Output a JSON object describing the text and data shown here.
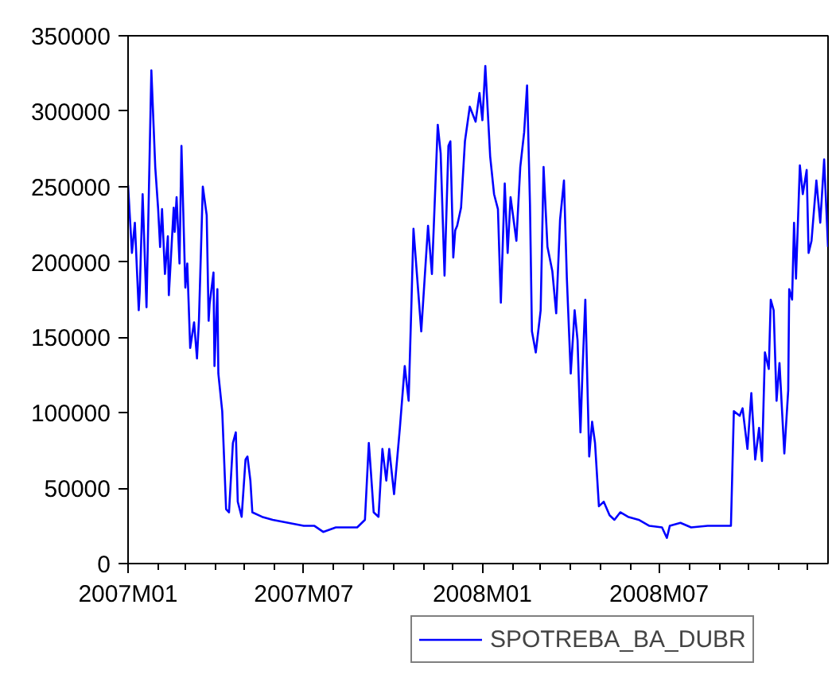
{
  "chart_data": {
    "type": "line",
    "legend": "bottom",
    "grid": false,
    "xlim": [
      "2007-01-01",
      "2008-12-22"
    ],
    "xticks": [
      {
        "value": "2007-01-01",
        "label": "2007M01"
      },
      {
        "value": "2007-02-01",
        "label": null
      },
      {
        "value": "2007-03-01",
        "label": null
      },
      {
        "value": "2007-04-01",
        "label": null
      },
      {
        "value": "2007-05-01",
        "label": null
      },
      {
        "value": "2007-06-01",
        "label": null
      },
      {
        "value": "2007-07-01",
        "label": "2007M07"
      },
      {
        "value": "2007-08-01",
        "label": null
      },
      {
        "value": "2007-09-01",
        "label": null
      },
      {
        "value": "2007-10-01",
        "label": null
      },
      {
        "value": "2007-11-01",
        "label": null
      },
      {
        "value": "2007-12-01",
        "label": null
      },
      {
        "value": "2008-01-01",
        "label": "2008M01"
      },
      {
        "value": "2008-02-01",
        "label": null
      },
      {
        "value": "2008-03-01",
        "label": null
      },
      {
        "value": "2008-04-01",
        "label": null
      },
      {
        "value": "2008-05-01",
        "label": null
      },
      {
        "value": "2008-06-01",
        "label": null
      },
      {
        "value": "2008-07-01",
        "label": "2008M07"
      },
      {
        "value": "2008-08-01",
        "label": null
      },
      {
        "value": "2008-09-01",
        "label": null
      },
      {
        "value": "2008-10-01",
        "label": null
      },
      {
        "value": "2008-11-01",
        "label": null
      },
      {
        "value": "2008-12-01",
        "label": null
      }
    ],
    "ylim": [
      0,
      350000
    ],
    "yticks": [
      0,
      50000,
      100000,
      150000,
      200000,
      250000,
      300000,
      350000
    ],
    "x": [
      "2007-01-01",
      "2007-01-05",
      "2007-01-08",
      "2007-01-12",
      "2007-01-13",
      "2007-01-16",
      "2007-01-20",
      "2007-01-25",
      "2007-01-29",
      "2007-02-01",
      "2007-02-03",
      "2007-02-05",
      "2007-02-08",
      "2007-02-11",
      "2007-02-12",
      "2007-02-17",
      "2007-02-18",
      "2007-02-20",
      "2007-02-23",
      "2007-02-25",
      "2007-03-01",
      "2007-03-03",
      "2007-03-06",
      "2007-03-10",
      "2007-03-13",
      "2007-03-15",
      "2007-03-19",
      "2007-03-23",
      "2007-03-25",
      "2007-03-26",
      "2007-03-30",
      "2007-03-31",
      "2007-04-03",
      "2007-04-04",
      "2007-04-08",
      "2007-04-12",
      "2007-04-15",
      "2007-04-19",
      "2007-04-22",
      "2007-04-24",
      "2007-04-28",
      "2007-05-02",
      "2007-05-04",
      "2007-05-07",
      "2007-05-09",
      "2007-05-19",
      "2007-05-30",
      "2007-06-15",
      "2007-07-01",
      "2007-07-12",
      "2007-07-21",
      "2007-08-03",
      "2007-08-25",
      "2007-09-02",
      "2007-09-06",
      "2007-09-08",
      "2007-09-11",
      "2007-09-16",
      "2007-09-20",
      "2007-09-24",
      "2007-09-27",
      "2007-10-02",
      "2007-10-08",
      "2007-10-13",
      "2007-10-17",
      "2007-10-20",
      "2007-10-22",
      "2007-10-30",
      "2007-11-06",
      "2007-11-10",
      "2007-11-16",
      "2007-11-19",
      "2007-11-23",
      "2007-11-27",
      "2007-11-29",
      "2007-12-02",
      "2007-12-04",
      "2007-12-06",
      "2007-12-10",
      "2007-12-14",
      "2007-12-19",
      "2007-12-25",
      "2007-12-29",
      "2008-01-01",
      "2008-01-04",
      "2008-01-09",
      "2008-01-13",
      "2008-01-17",
      "2008-01-20",
      "2008-01-24",
      "2008-01-27",
      "2008-01-30",
      "2008-02-05",
      "2008-02-09",
      "2008-02-13",
      "2008-02-16",
      "2008-02-19",
      "2008-02-21",
      "2008-02-25",
      "2008-03-01",
      "2008-03-04",
      "2008-03-08",
      "2008-03-13",
      "2008-03-17",
      "2008-03-21",
      "2008-03-25",
      "2008-03-28",
      "2008-04-01",
      "2008-04-05",
      "2008-04-08",
      "2008-04-11",
      "2008-04-13",
      "2008-04-16",
      "2008-04-20",
      "2008-04-23",
      "2008-04-26",
      "2008-04-30",
      "2008-05-05",
      "2008-05-11",
      "2008-05-16",
      "2008-05-22",
      "2008-05-30",
      "2008-06-10",
      "2008-06-21",
      "2008-07-04",
      "2008-07-09",
      "2008-07-12",
      "2008-07-23",
      "2008-08-03",
      "2008-08-20",
      "2008-09-13",
      "2008-09-16",
      "2008-09-22",
      "2008-09-25",
      "2008-09-30",
      "2008-10-04",
      "2008-10-08",
      "2008-10-12",
      "2008-10-15",
      "2008-10-18",
      "2008-10-22",
      "2008-10-24",
      "2008-10-27",
      "2008-10-30",
      "2008-11-02",
      "2008-11-07",
      "2008-11-11",
      "2008-11-12",
      "2008-11-15",
      "2008-11-17",
      "2008-11-19",
      "2008-11-23",
      "2008-11-26",
      "2008-11-30",
      "2008-12-02",
      "2008-12-05",
      "2008-12-10",
      "2008-12-14",
      "2008-12-18",
      "2008-12-22"
    ],
    "series": [
      {
        "name": "SPOTREBA_BA_DUBR",
        "color": "#0000ff",
        "values": [
          251000,
          206000,
          226000,
          168000,
          180000,
          245000,
          170000,
          327000,
          263000,
          235000,
          210000,
          235000,
          192000,
          217000,
          178000,
          236000,
          220000,
          243000,
          199000,
          277000,
          183000,
          199000,
          143000,
          160000,
          136000,
          161000,
          250000,
          231000,
          161000,
          172000,
          193000,
          131000,
          182000,
          126000,
          101000,
          36000,
          34000,
          80000,
          87000,
          41000,
          31000,
          69000,
          71000,
          55000,
          34000,
          31000,
          29000,
          27000,
          25000,
          25000,
          21000,
          24000,
          24000,
          29000,
          80000,
          62000,
          34000,
          31000,
          76000,
          55000,
          76000,
          46000,
          90000,
          131000,
          108000,
          175000,
          222000,
          154000,
          224000,
          192000,
          291000,
          272000,
          191000,
          277000,
          280000,
          203000,
          221000,
          224000,
          236000,
          280000,
          303000,
          293000,
          312000,
          294000,
          330000,
          270000,
          245000,
          235000,
          173000,
          252000,
          206000,
          243000,
          214000,
          263000,
          286000,
          317000,
          238000,
          154000,
          140000,
          168000,
          263000,
          210000,
          194000,
          166000,
          228000,
          254000,
          189000,
          126000,
          168000,
          148000,
          87000,
          126000,
          175000,
          71000,
          94000,
          80000,
          38000,
          41000,
          32000,
          29000,
          34000,
          31000,
          29000,
          25000,
          24000,
          17000,
          25000,
          27000,
          24000,
          25000,
          25000,
          101000,
          98000,
          103000,
          76000,
          113000,
          69000,
          90000,
          68000,
          140000,
          129000,
          175000,
          168000,
          108000,
          133000,
          73000,
          115000,
          182000,
          175000,
          226000,
          189000,
          264000,
          245000,
          261000,
          206000,
          214000,
          254000,
          226000,
          268000,
          210000
        ]
      }
    ]
  }
}
